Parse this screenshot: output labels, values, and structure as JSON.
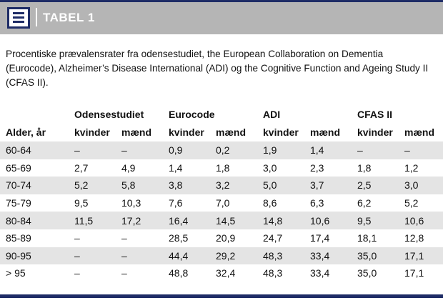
{
  "header": {
    "title": "TABEL 1"
  },
  "caption": "Procentiske prævalensrater fra odensestudiet, the European Collaboration on Dementia (Eurocode), Alzheimer’s Disease International (ADI) og the Cognitive Function and Ageing Study II (CFAS II).",
  "table": {
    "group_headers": [
      "",
      "Odensestudiet",
      "Eurocode",
      "ADI",
      "CFAS II"
    ],
    "sub_headers": [
      "Alder, år",
      "kvinder",
      "mænd",
      "kvinder",
      "mænd",
      "kvinder",
      "mænd",
      "kvinder",
      "mænd"
    ],
    "rows": [
      [
        "60-64",
        "–",
        "–",
        "0,9",
        "0,2",
        "1,9",
        "1,4",
        "–",
        "–"
      ],
      [
        "65-69",
        "2,7",
        "4,9",
        "1,4",
        "1,8",
        "3,0",
        "2,3",
        "1,8",
        "1,2"
      ],
      [
        "70-74",
        "5,2",
        "5,8",
        "3,8",
        "3,2",
        "5,0",
        "3,7",
        "2,5",
        "3,0"
      ],
      [
        "75-79",
        "9,5",
        "10,3",
        "7,6",
        "7,0",
        "8,6",
        "6,3",
        "6,2",
        "5,2"
      ],
      [
        "80-84",
        "11,5",
        "17,2",
        "16,4",
        "14,5",
        "14,8",
        "10,6",
        "9,5",
        "10,6"
      ],
      [
        "85-89",
        "–",
        "–",
        "28,5",
        "20,9",
        "24,7",
        "17,4",
        "18,1",
        "12,8"
      ],
      [
        "90-95",
        "–",
        "–",
        "44,4",
        "29,2",
        "48,3",
        "33,4",
        "35,0",
        "17,1"
      ],
      [
        "> 95",
        "–",
        "–",
        "48,8",
        "32,4",
        "48,3",
        "33,4",
        "35,0",
        "17,1"
      ]
    ]
  },
  "colors": {
    "accent": "#1e2c66",
    "header_bg": "#b5b5b5",
    "row_stripe": "#e4e4e4"
  },
  "icons": {
    "header_icon": "document-icon"
  }
}
